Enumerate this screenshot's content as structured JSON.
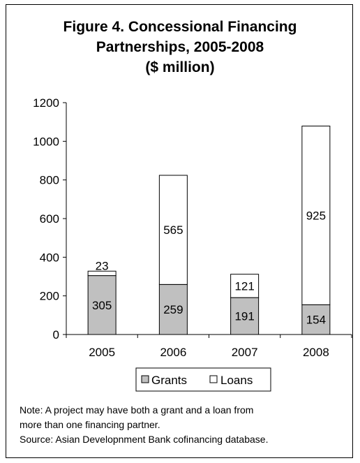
{
  "chart_data": {
    "type": "bar",
    "stacked": true,
    "title_lines": [
      "Figure 4. Concessional Financing",
      "Partnerships, 2005-2008",
      "($ million)"
    ],
    "categories": [
      "2005",
      "2006",
      "2007",
      "2008"
    ],
    "series": [
      {
        "name": "Grants",
        "values": [
          305,
          259,
          191,
          154
        ],
        "color": "#c0c0c0"
      },
      {
        "name": "Loans",
        "values": [
          23,
          565,
          121,
          925
        ],
        "color": "#ffffff"
      }
    ],
    "ylim": [
      0,
      1200
    ],
    "yticks": [
      "0",
      "200",
      "400",
      "600",
      "800",
      "1000",
      "1200"
    ],
    "legend_position": "bottom",
    "grid": false
  },
  "notes": {
    "line1": "Note: A project may have both a grant and a loan from",
    "line2": "more than one financing partner.",
    "line3": "Source: Asian Developnment Bank cofinancing database."
  }
}
